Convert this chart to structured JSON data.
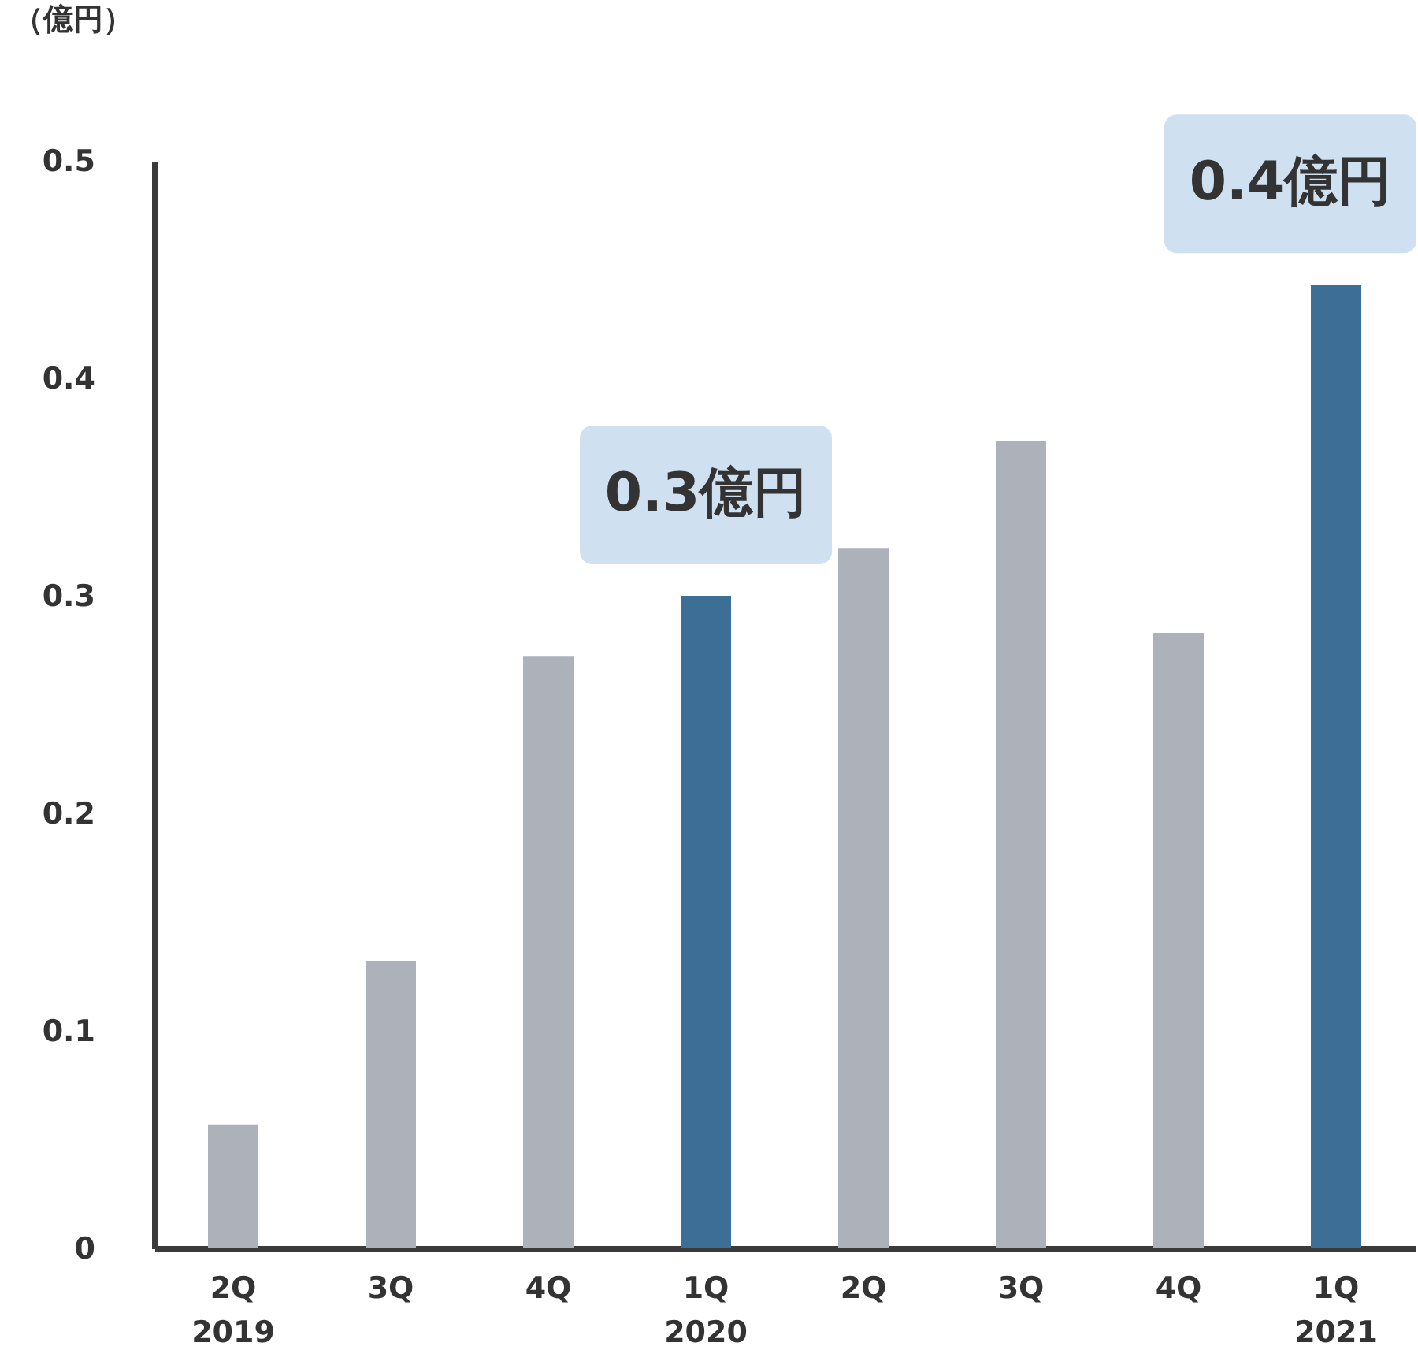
{
  "chart_data": {
    "type": "bar",
    "ylabel": "（億円）",
    "categories": [
      "2Q\n2019",
      "3Q",
      "4Q",
      "1Q\n2020",
      "2Q",
      "3Q",
      "4Q",
      "1Q\n2021"
    ],
    "values": [
      0.057,
      0.132,
      0.272,
      0.3,
      0.322,
      0.371,
      0.283,
      0.443
    ],
    "colors": [
      "#adb1b9",
      "#adb1b9",
      "#adb1b9",
      "#3d6e96",
      "#adb1b9",
      "#adb1b9",
      "#adb1b9",
      "#3d6e96"
    ],
    "value_labels": [
      null,
      null,
      null,
      "0.3億円",
      null,
      null,
      null,
      "0.4億円"
    ],
    "ylim": [
      0,
      0.5
    ],
    "yticks": [
      0,
      0.1,
      0.2,
      0.3,
      0.4,
      0.5
    ],
    "grid": false
  }
}
